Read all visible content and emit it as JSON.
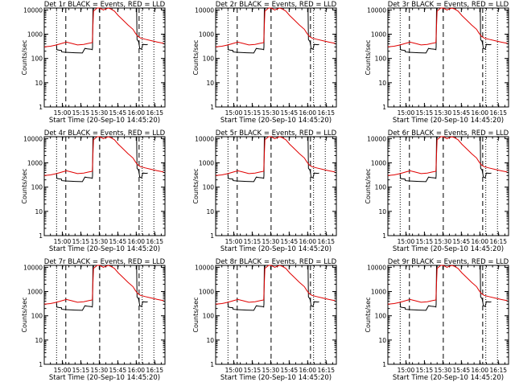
{
  "chart_data": [
    {
      "type": "line",
      "title": "Det 1r BLACK = Events, RED = LLD"
    },
    {
      "type": "line",
      "title": "Det 2r BLACK = Events, RED = LLD"
    },
    {
      "type": "line",
      "title": "Det 3r BLACK = Events, RED = LLD"
    },
    {
      "type": "line",
      "title": "Det 4r BLACK = Events, RED = LLD"
    },
    {
      "type": "line",
      "title": "Det 5r BLACK = Events, RED = LLD"
    },
    {
      "type": "line",
      "title": "Det 6r BLACK = Events, RED = LLD"
    },
    {
      "type": "line",
      "title": "Det 7r BLACK = Events, RED = LLD"
    },
    {
      "type": "line",
      "title": "Det 8r BLACK = Events, RED = LLD"
    },
    {
      "type": "line",
      "title": "Det 9r BLACK = Events, RED = LLD"
    }
  ],
  "shared": {
    "xlabel": "Start Time (20-Sep-10 14:45:20)",
    "ylabel": "Counts/sec",
    "x_range_minutes": [
      0,
      98
    ],
    "x_ticks": [
      {
        "label": "15:00",
        "value": 14.67
      },
      {
        "label": "15:15",
        "value": 29.67
      },
      {
        "label": "15:30",
        "value": 44.67
      },
      {
        "label": "15:45",
        "value": 59.67
      },
      {
        "label": "16:00",
        "value": 74.67
      },
      {
        "label": "16:15",
        "value": 89.67
      }
    ],
    "y_scale": "log",
    "y_range": [
      1,
      12000
    ],
    "y_ticks": [
      {
        "label": "1",
        "value": 1
      },
      {
        "label": "10",
        "value": 10
      },
      {
        "label": "100",
        "value": 100
      },
      {
        "label": "1000",
        "value": 1000
      },
      {
        "label": "10000",
        "value": 10000
      }
    ],
    "dotted_markers_x": [
      10,
      79.5,
      89
    ],
    "dashed_markers_x": [
      17.5,
      45,
      77
    ],
    "series_colors": {
      "events": "#000000",
      "lld": "#e00000"
    },
    "lld_series": {
      "x": [
        0,
        5,
        10,
        15,
        18,
        22,
        27,
        32,
        36,
        39,
        39.3,
        40,
        43,
        45,
        48,
        50,
        52,
        54,
        57,
        60,
        64,
        68,
        72,
        74,
        76,
        78,
        82,
        87,
        92,
        97
      ],
      "y": [
        300,
        320,
        360,
        430,
        470,
        420,
        360,
        380,
        420,
        450,
        1300,
        9000,
        12000,
        12000,
        10000,
        11000,
        12000,
        11000,
        9000,
        6000,
        3800,
        2400,
        1600,
        1100,
        820,
        700,
        620,
        540,
        470,
        420
      ]
    },
    "events_series": {
      "x": [
        10,
        10.2,
        12,
        14,
        14.2,
        17,
        22,
        25,
        28,
        31,
        33,
        35,
        38,
        39,
        39.2,
        39.5,
        45,
        50,
        55,
        60,
        65,
        70,
        74,
        75,
        75.3,
        76.5,
        77,
        77.5,
        79,
        80,
        83,
        84
      ],
      "y": [
        350,
        230,
        220,
        215,
        185,
        180,
        175,
        172,
        170,
        168,
        260,
        250,
        240,
        230,
        300,
        12000,
        12000,
        12000,
        12000,
        12000,
        12000,
        12000,
        12000,
        12000,
        600,
        500,
        380,
        260,
        240,
        380,
        370,
        380
      ]
    }
  }
}
